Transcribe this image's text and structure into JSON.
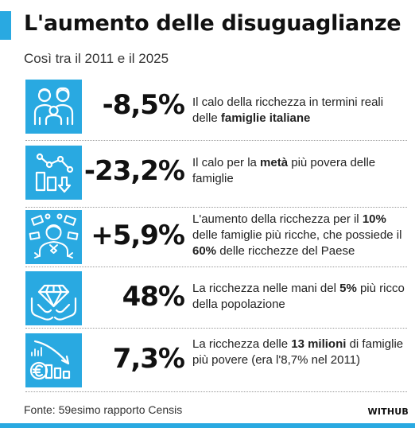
{
  "header": {
    "title": "L'aumento delle disuguaglianze",
    "subtitle": "Così tra il 2011 e il 2025"
  },
  "colors": {
    "accent": "#29a9e1",
    "text": "#111111"
  },
  "rows": [
    {
      "icon": "family-icon",
      "value": "-8,5%",
      "desc": [
        {
          "t": "Il calo della ricchezza in termini reali delle ",
          "b": false
        },
        {
          "t": "famiglie italiane",
          "b": true
        }
      ]
    },
    {
      "icon": "decline-chart-icon",
      "value": "-23,2%",
      "desc": [
        {
          "t": "Il calo per la ",
          "b": false
        },
        {
          "t": "metà",
          "b": true
        },
        {
          "t": " più povera delle famiglie",
          "b": false
        }
      ]
    },
    {
      "icon": "rich-person-money-icon",
      "value": "+5,9%",
      "desc": [
        {
          "t": "L'aumento della ricchezza per il ",
          "b": false
        },
        {
          "t": "10%",
          "b": true
        },
        {
          "t": " delle famiglie più ricche, che possiede il ",
          "b": false
        },
        {
          "t": "60%",
          "b": true
        },
        {
          "t": " delle ricchezze del Paese",
          "b": false
        }
      ]
    },
    {
      "icon": "diamond-hands-icon",
      "value": "48%",
      "desc": [
        {
          "t": "La ricchezza nelle mani del ",
          "b": false
        },
        {
          "t": "5%",
          "b": true
        },
        {
          "t": " più ricco della popolazione",
          "b": false
        }
      ]
    },
    {
      "icon": "euro-decline-icon",
      "value": "7,3%",
      "desc": [
        {
          "t": "La ricchezza delle ",
          "b": false
        },
        {
          "t": "13 milioni",
          "b": true
        },
        {
          "t": " di famiglie più povere (era l'8,7% nel 2011)",
          "b": false
        }
      ]
    }
  ],
  "footer": {
    "source": "Fonte: 59esimo rapporto Censis",
    "brand": "WITHUB"
  }
}
